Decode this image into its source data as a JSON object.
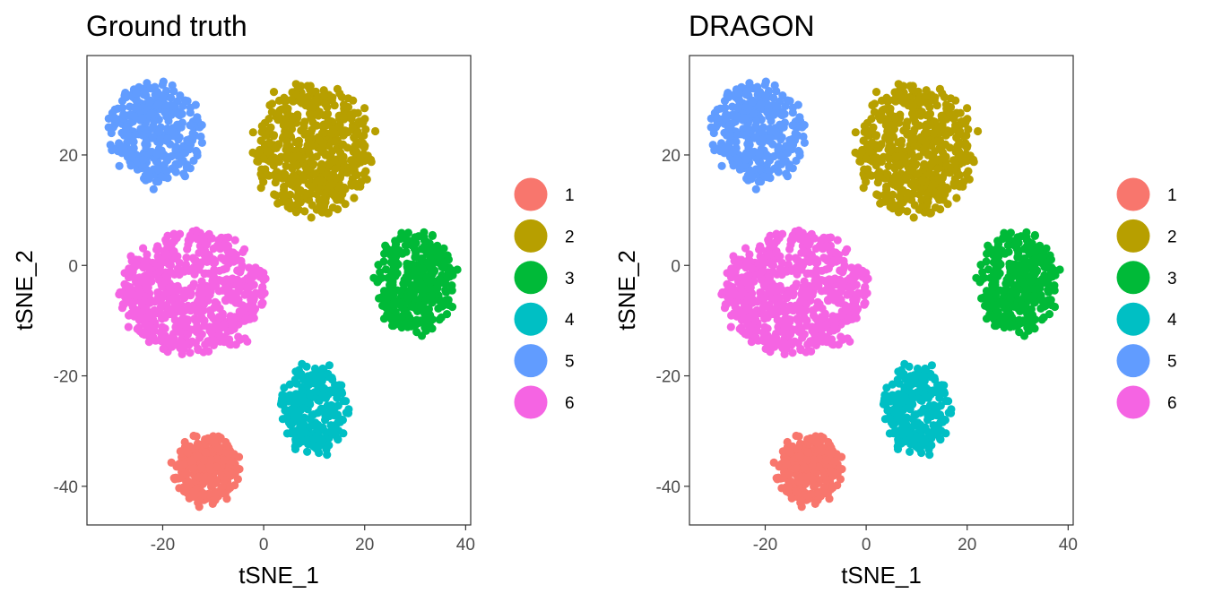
{
  "chart_data": [
    {
      "type": "scatter",
      "title": "Ground truth",
      "xlabel": "tSNE_1",
      "ylabel": "tSNE_2",
      "xlim": [
        -35,
        41
      ],
      "ylim": [
        -47,
        38
      ],
      "xticks": [
        -20,
        0,
        20,
        40
      ],
      "yticks": [
        20,
        0,
        -20,
        -40
      ],
      "grid": false,
      "legend_position": "right",
      "series": [
        {
          "name": "1",
          "color": "#F8766D",
          "center": [
            -11.5,
            -37
          ],
          "radius": [
            6.3,
            6.3
          ],
          "count": 260
        },
        {
          "name": "2",
          "color": "#B79F00",
          "center": [
            10,
            21
          ],
          "radius": [
            11.5,
            12
          ],
          "count": 520
        },
        {
          "name": "3",
          "color": "#00BA38",
          "center": [
            30,
            -3
          ],
          "radius": [
            7.5,
            9
          ],
          "count": 340
        },
        {
          "name": "4",
          "color": "#00BFC4",
          "center": [
            10,
            -26
          ],
          "radius": [
            6.5,
            7.5
          ],
          "count": 260
        },
        {
          "name": "5",
          "color": "#619CFF",
          "center": [
            -21.5,
            24
          ],
          "radius": [
            9,
            9
          ],
          "count": 330
        },
        {
          "name": "6",
          "color": "#F564E3",
          "center": [
            -14,
            -5
          ],
          "radius": [
            14.5,
            11
          ],
          "count": 620
        }
      ]
    },
    {
      "type": "scatter",
      "title": "DRAGON",
      "xlabel": "tSNE_1",
      "ylabel": "tSNE_2",
      "xlim": [
        -35,
        41
      ],
      "ylim": [
        -47,
        38
      ],
      "xticks": [
        -20,
        0,
        20,
        40
      ],
      "yticks": [
        20,
        0,
        -20,
        -40
      ],
      "grid": false,
      "legend_position": "right",
      "series": [
        {
          "name": "1",
          "color": "#F8766D",
          "center": [
            -11.5,
            -37
          ],
          "radius": [
            6.3,
            6.3
          ],
          "count": 260
        },
        {
          "name": "2",
          "color": "#B79F00",
          "center": [
            10,
            21
          ],
          "radius": [
            11.5,
            12
          ],
          "count": 520
        },
        {
          "name": "3",
          "color": "#00BA38",
          "center": [
            30,
            -3
          ],
          "radius": [
            7.5,
            9
          ],
          "count": 340
        },
        {
          "name": "4",
          "color": "#00BFC4",
          "center": [
            10,
            -26
          ],
          "radius": [
            6.5,
            7.5
          ],
          "count": 260
        },
        {
          "name": "5",
          "color": "#619CFF",
          "center": [
            -21.5,
            24
          ],
          "radius": [
            9,
            9
          ],
          "count": 330
        },
        {
          "name": "6",
          "color": "#F564E3",
          "center": [
            -14,
            -5
          ],
          "radius": [
            14.5,
            11
          ],
          "count": 620
        }
      ]
    }
  ]
}
